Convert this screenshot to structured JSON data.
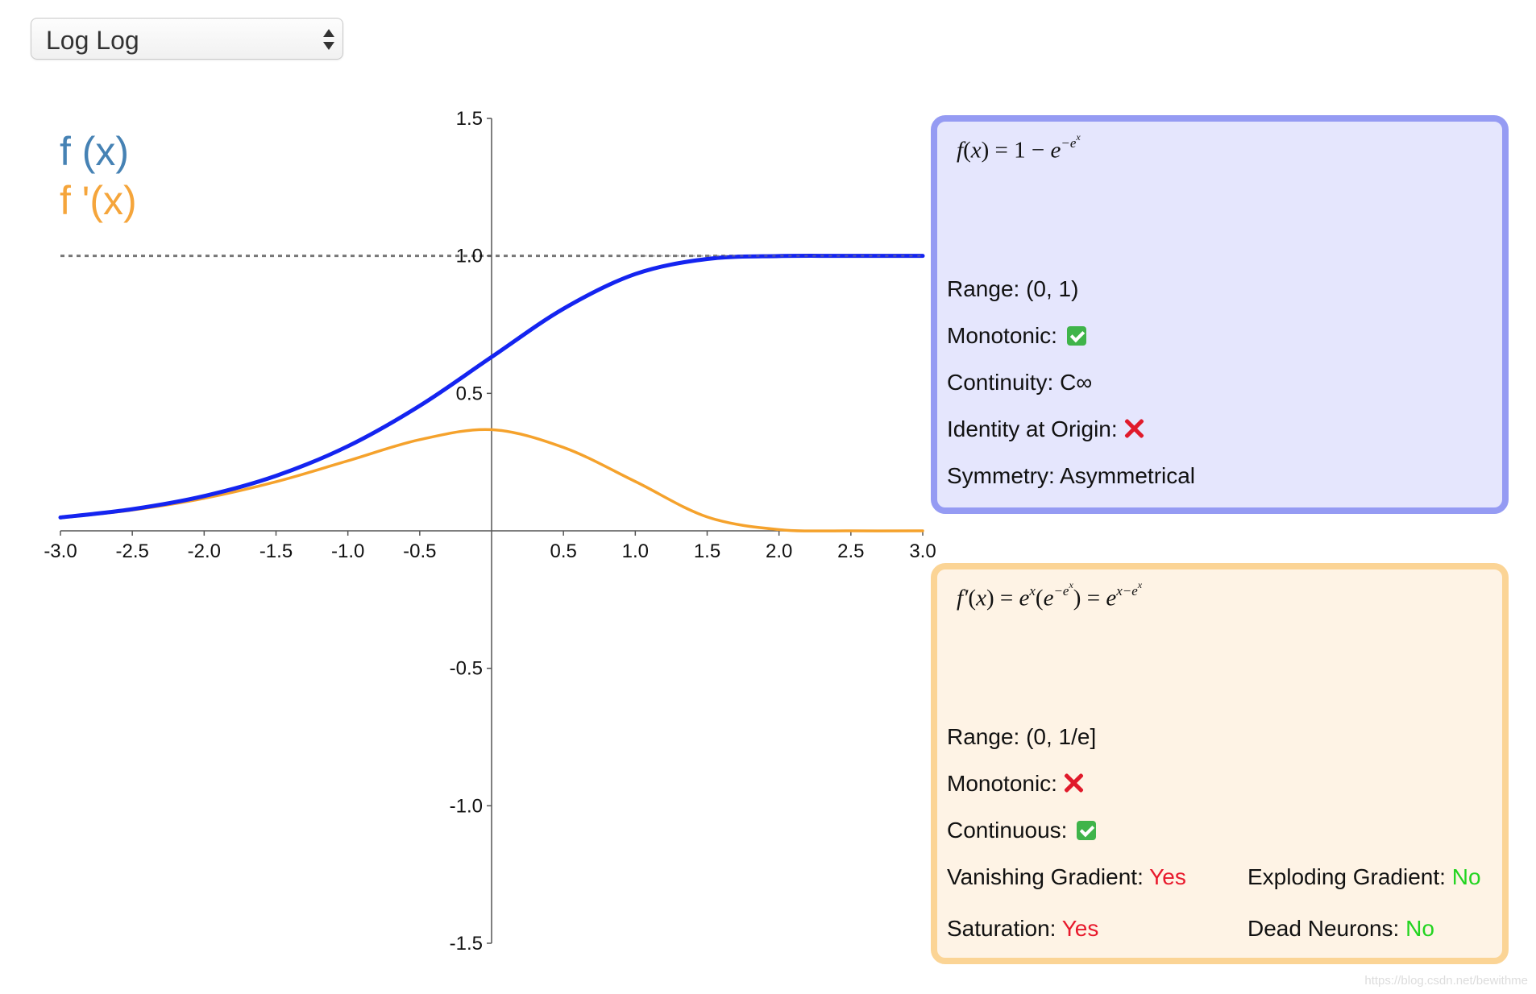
{
  "selector": {
    "value": "Log Log"
  },
  "legend": {
    "f_label": "f (x)",
    "fprime_label": "f '(x)",
    "f_color": "#4682b4",
    "fprime_color": "#f5a53b"
  },
  "chart_data": {
    "type": "line",
    "xlim": [
      -3.0,
      3.0
    ],
    "ylim": [
      -1.5,
      1.5
    ],
    "x_ticks": [
      "-3.0",
      "-2.5",
      "-2.0",
      "-1.5",
      "-1.0",
      "-0.5",
      "0.5",
      "1.0",
      "1.5",
      "2.0",
      "2.5",
      "3.0"
    ],
    "y_ticks": [
      "1.5",
      "1.0",
      "0.5",
      "-0.5",
      "-1.0",
      "-1.5"
    ],
    "x": [
      -3.0,
      -2.5,
      -2.0,
      -1.5,
      -1.0,
      -0.5,
      0.0,
      0.5,
      1.0,
      1.5,
      2.0,
      2.5,
      3.0
    ],
    "series": [
      {
        "name": "f (x)",
        "color": "#1424f0",
        "values": [
          0.0486,
          0.0788,
          0.1266,
          0.2,
          0.3078,
          0.4548,
          0.6321,
          0.8077,
          0.934,
          0.9887,
          0.9994,
          1.0,
          1.0
        ]
      },
      {
        "name": "f '(x)",
        "color": "#f5a22c",
        "values": [
          0.0473,
          0.0757,
          0.1183,
          0.1785,
          0.2546,
          0.3315,
          0.3679,
          0.3034,
          0.1794,
          0.0506,
          0.0045,
          0.0001,
          0.0
        ]
      }
    ],
    "asymptote": 1.0,
    "asymptote_color": "#777777"
  },
  "panel_f": {
    "range": "Range: (0, 1)",
    "monotonic": "Monotonic:",
    "continuity": "Continuity: C∞",
    "identity": "Identity at Origin:",
    "symmetry": "Symmetry: Asymmetrical"
  },
  "panel_d": {
    "range": "Range: (0, 1/e]",
    "monotonic": "Monotonic:",
    "continuous": "Continuous:",
    "vanishing_label": "Vanishing Gradient:",
    "vanishing_value": "Yes",
    "exploding_label": "Exploding Gradient:",
    "exploding_value": "No",
    "saturation_label": "Saturation:",
    "saturation_value": "Yes",
    "dead_label": "Dead Neurons:",
    "dead_value": "No"
  },
  "watermark": "https://blog.csdn.net/bewithme"
}
